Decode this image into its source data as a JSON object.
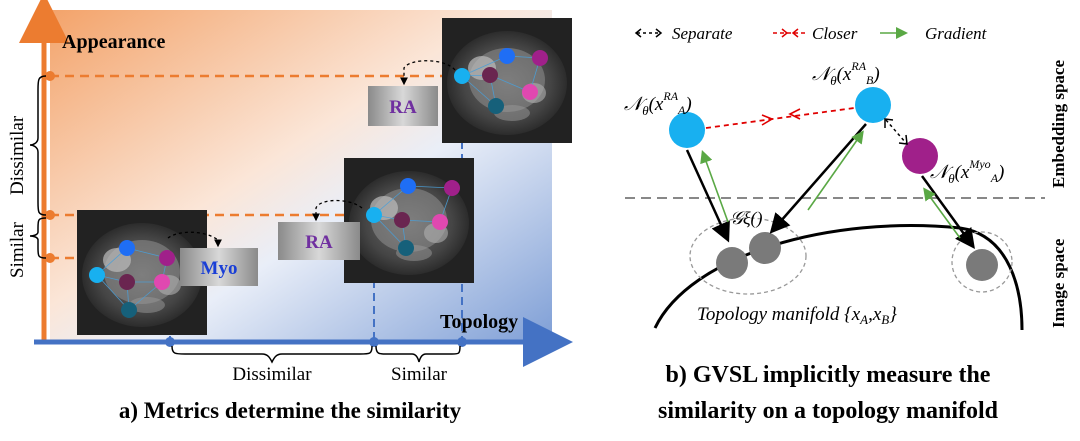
{
  "panel_a": {
    "axis_y_label": "Appearance",
    "axis_x_label": "Topology",
    "y_bracket_labels": [
      "Similar",
      "Dissimilar"
    ],
    "x_bracket_labels": [
      "Dissimilar",
      "Similar"
    ],
    "image_tags": [
      "Myo",
      "RA",
      "RA"
    ],
    "caption": "a) Metrics determine the similarity"
  },
  "panel_b": {
    "legend": [
      {
        "symbol": "<-->",
        "label": "Separate",
        "color": "#000000"
      },
      {
        "symbol": "<-->",
        "label": "Closer",
        "color": "#e00000"
      },
      {
        "symbol": "→",
        "label": "Gradient",
        "color": "#5aa845"
      }
    ],
    "side_labels": [
      "Embedding space",
      "Image space"
    ],
    "node_labels": {
      "n_ra_a": {
        "base": "𝒩",
        "sub": "θ",
        "open": "(x",
        "sup": "RA",
        "supsub": "A",
        "close": ")"
      },
      "n_ra_b": {
        "base": "𝒩",
        "sub": "θ",
        "open": "(x",
        "sup": "RA",
        "supsub": "B",
        "close": ")"
      },
      "n_myo_a": {
        "base": "𝒩",
        "sub": "θ",
        "open": "(x",
        "sup": "Myo",
        "supsub": "A",
        "close": ")"
      }
    },
    "transform_label": "𝒢ξ()",
    "manifold_label": "Topology manifold {x",
    "manifold_label_parts": {
      "a": "A",
      "sep": ",x",
      "b": "B",
      "end": "}"
    },
    "caption_line1": "b) GVSL implicitly measure the",
    "caption_line2": "similarity on a topology manifold"
  },
  "colors": {
    "orange": "#ec7c30",
    "blue": "#4472c4",
    "purple": "#7030a0",
    "cyan": "#18b0f0",
    "red": "#e00000",
    "green": "#5aa845",
    "magenta": "#a0208a",
    "gray_node": "#7a7a7a"
  }
}
